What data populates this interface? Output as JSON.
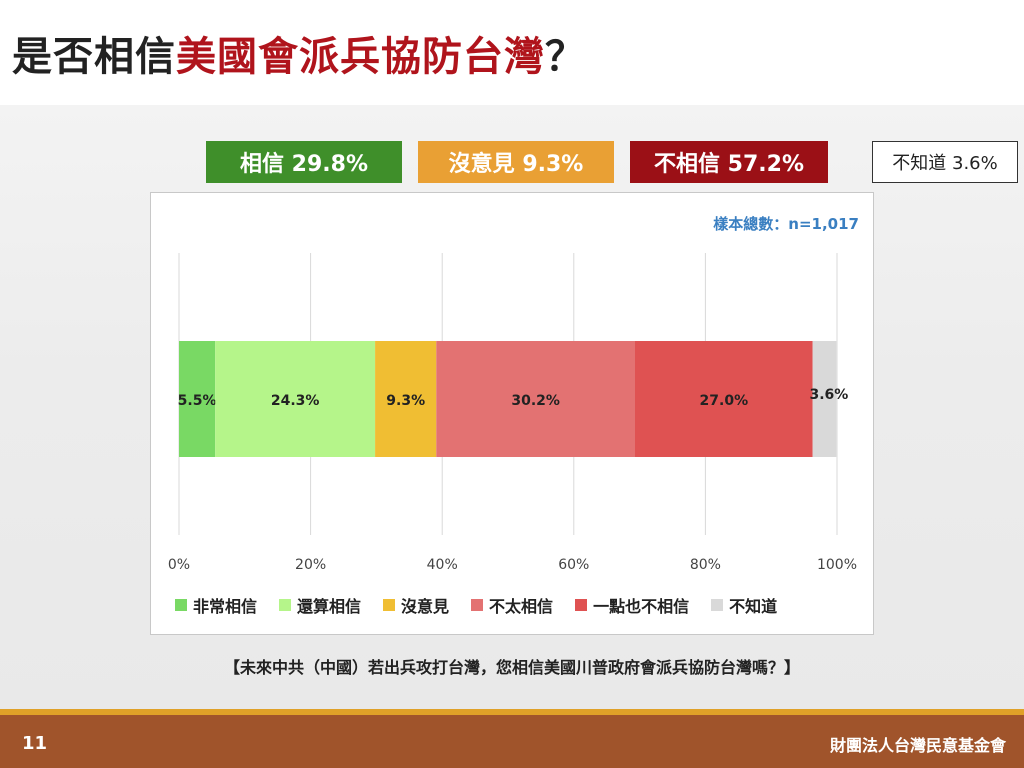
{
  "title": {
    "prefix": "是否相信",
    "highlight": "美國會派兵協防台灣",
    "suffix": "？"
  },
  "summary": [
    {
      "label": "相信 29.8%",
      "bg": "#3f8f2a",
      "fg": "#ffffff"
    },
    {
      "label": "沒意見 9.3%",
      "bg": "#e9a034",
      "fg": "#ffffff"
    },
    {
      "label": "不相信 57.2%",
      "bg": "#9b1016",
      "fg": "#ffffff"
    },
    {
      "label": "不知道 3.6%",
      "bg": "#ffffff",
      "fg": "#222222"
    }
  ],
  "sample_text": "樣本總數：n=1,017",
  "chart_data": {
    "type": "bar",
    "orientation": "horizontal-stacked-100",
    "categories": [
      ""
    ],
    "series": [
      {
        "name": "非常相信",
        "values": [
          5.5
        ],
        "label": "5.5%",
        "color": "#79d964"
      },
      {
        "name": "還算相信",
        "values": [
          24.3
        ],
        "label": "24.3%",
        "color": "#b5f58a"
      },
      {
        "name": "沒意見",
        "values": [
          9.3
        ],
        "label": "9.3%",
        "color": "#f0be33"
      },
      {
        "name": "不太相信",
        "values": [
          30.2
        ],
        "label": "30.2%",
        "color": "#e37272"
      },
      {
        "name": "一點也不相信",
        "values": [
          27.0
        ],
        "label": "27.0%",
        "color": "#df5252"
      },
      {
        "name": "不知道",
        "values": [
          3.6
        ],
        "label": "3.6%",
        "color": "#d9d9d9"
      }
    ],
    "xlim": [
      0,
      100
    ],
    "xticks": [
      "0%",
      "20%",
      "40%",
      "60%",
      "80%",
      "100%"
    ],
    "grid": true,
    "legend_position": "bottom"
  },
  "question": "【未來中共（中國）若出兵攻打台灣，您相信美國川普政府會派兵協防台灣嗎？】",
  "footer": {
    "page": "11",
    "org": "財團法人台灣民意基金會"
  }
}
